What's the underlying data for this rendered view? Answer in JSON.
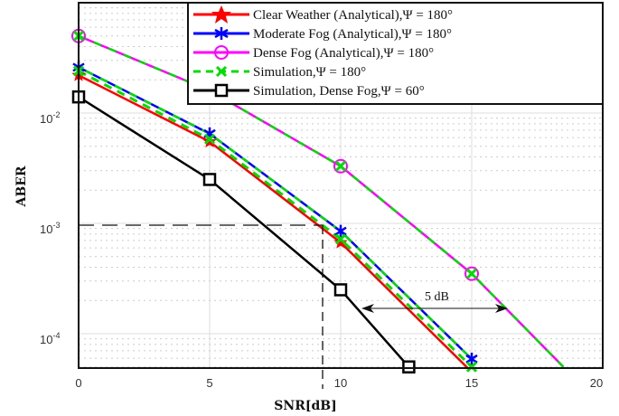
{
  "chart_data": {
    "type": "line",
    "title": "",
    "xlabel": "SNR[dB]",
    "ylabel": "ABER",
    "xlim": [
      0,
      20
    ],
    "ylim": [
      5e-05,
      0.1
    ],
    "yscale": "log",
    "grid": true,
    "x_ticks": [
      "0",
      "5",
      "10",
      "15",
      "20"
    ],
    "y_ticks": [
      "10^-2",
      "10^-3",
      "10^-4"
    ],
    "legend_position": "upper right",
    "series": [
      {
        "name": "Clear Weather (Analytical),Ψ = 180°",
        "color": "#ff0000",
        "marker": "star",
        "style": "solid",
        "x": [
          0,
          5,
          10,
          15
        ],
        "values": [
          0.022,
          0.0055,
          0.00067,
          4.5e-05
        ]
      },
      {
        "name": "Moderate Fog (Analytical),Ψ = 180°",
        "color": "#0000ff",
        "marker": "asterisk",
        "style": "solid",
        "x": [
          0,
          5,
          10,
          15
        ],
        "values": [
          0.026,
          0.0065,
          0.00085,
          5.9e-05
        ]
      },
      {
        "name": "Dense Fog (Analytical),Ψ = 180°",
        "color": "#ff00ff",
        "marker": "circle",
        "style": "solid",
        "x": [
          0,
          5,
          10,
          15,
          18.5
        ],
        "values": [
          0.05,
          0.016,
          0.0033,
          0.00035,
          5e-05
        ]
      },
      {
        "name": "Simulation,Ψ = 180°",
        "color": "#00dd00",
        "marker": "x",
        "style": "dashed",
        "x": [
          0,
          5,
          10,
          15
        ],
        "values": [
          0.024,
          0.0058,
          0.00072,
          5e-05
        ]
      },
      {
        "name": "Simulation, Dense Fog,Ψ = 60°",
        "color": "#000000",
        "marker": "square",
        "style": "solid",
        "x": [
          0,
          5,
          10,
          12.6
        ],
        "values": [
          0.014,
          0.0025,
          0.00025,
          5e-05
        ]
      }
    ],
    "annotations": [
      {
        "text": "5 dB",
        "type": "double-arrow",
        "from_x": 10.7,
        "to_x": 16.3,
        "y": 0.00022
      },
      {
        "type": "dashed-guide",
        "x": 9.3,
        "y": 0.001
      }
    ]
  },
  "legend": {
    "items": [
      {
        "label": "Clear Weather (Analytical),Ψ = 180°"
      },
      {
        "label": "Moderate Fog (Analytical),Ψ = 180°"
      },
      {
        "label": "Dense Fog (Analytical),Ψ = 180°"
      },
      {
        "label": "Simulation,Ψ = 180°"
      },
      {
        "label": "Simulation, Dense Fog,Ψ = 60°"
      }
    ]
  },
  "axes": {
    "xlabel": "SNR[dB]",
    "ylabel": "ABER",
    "xticks": [
      "0",
      "5",
      "10",
      "15",
      "20"
    ],
    "yticks": [
      {
        "base": "10",
        "exp": "-2"
      },
      {
        "base": "10",
        "exp": "-3"
      },
      {
        "base": "10",
        "exp": "-4"
      }
    ]
  },
  "annotation": {
    "gap_label": "5 dB"
  }
}
